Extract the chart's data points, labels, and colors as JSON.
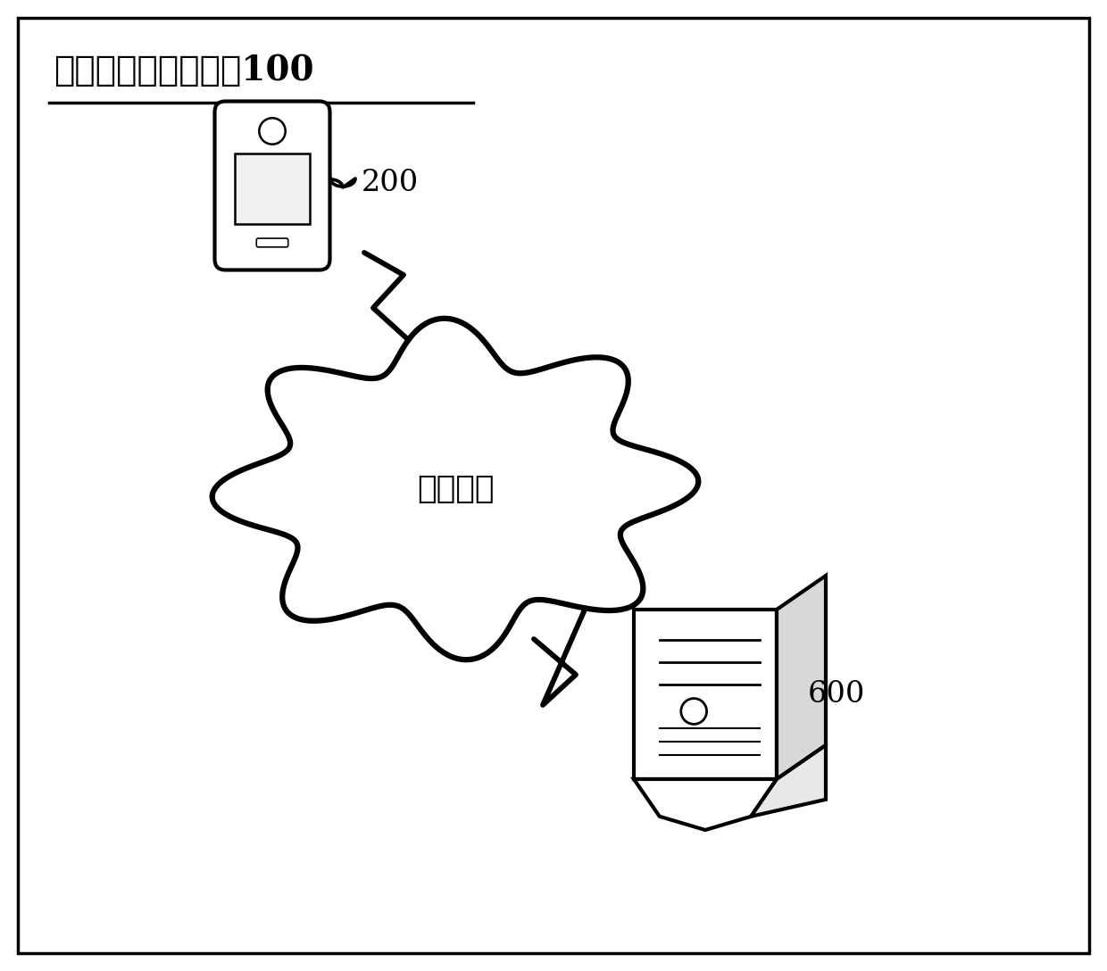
{
  "title": "混合应用的埋点系统100",
  "cloud_label": "通信网络",
  "server_label": "600",
  "phone_label": "200",
  "bg_color": "#ffffff",
  "line_color": "#000000",
  "title_fontsize": 28,
  "label_fontsize": 22,
  "cloud_label_fontsize": 26
}
